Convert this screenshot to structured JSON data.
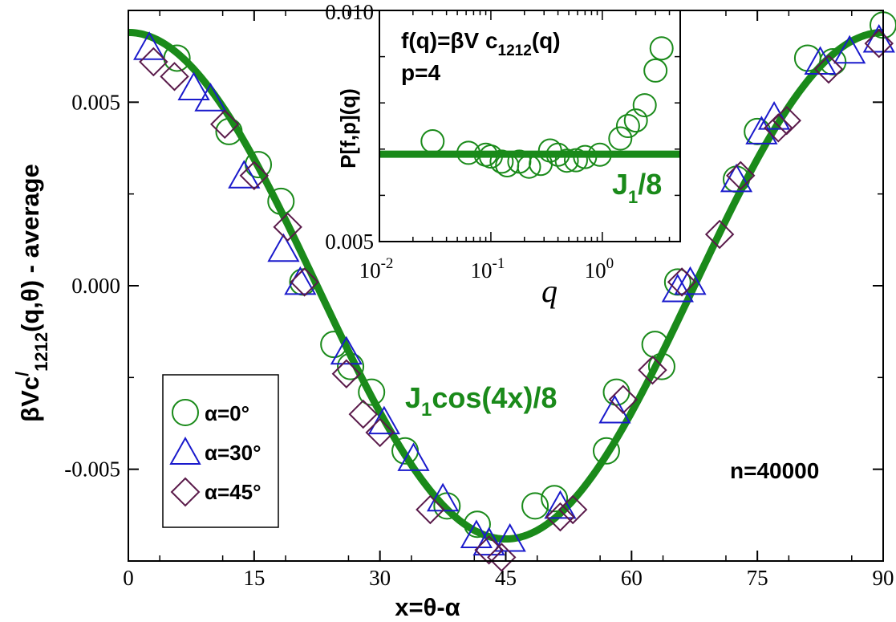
{
  "colors": {
    "theory_line": "#1a8a1a",
    "alpha0": "#1a8a1a",
    "alpha30": "#1a1acc",
    "alpha45": "#5a1a4a",
    "axis": "#000000"
  },
  "chart_data": [
    {
      "type": "scatter",
      "xlabel": {
        "main": "x=θ-α"
      },
      "ylabel": {
        "pre": "βVc",
        "prime": "/",
        "sub": "1212",
        "post": "(q,θ) - average"
      },
      "xlim": [
        0,
        90
      ],
      "ylim": [
        -0.0075,
        0.0075
      ],
      "xticks": [
        0,
        15,
        30,
        45,
        60,
        75,
        90
      ],
      "xtick_labels": [
        "0",
        "15",
        "30",
        "45",
        "60",
        "75",
        "90"
      ],
      "yticks": [
        -0.005,
        0.0,
        0.005
      ],
      "ytick_labels": [
        "-0.005",
        "0.000",
        "0.005"
      ],
      "curve": {
        "amplitude": 0.0069,
        "label_pre": "J",
        "label_sub": "1",
        "label_post": "cos(4x)/8"
      },
      "legend": {
        "placement": "bottom-left",
        "entries": [
          "α=0°",
          "α=30°",
          "α=45°"
        ]
      },
      "annotation": "n=40000",
      "series": [
        {
          "name": "α=0°",
          "marker": "circle",
          "points": [
            [
              5.8,
              0.0062
            ],
            [
              12,
              0.0042
            ],
            [
              15.5,
              0.0033
            ],
            [
              18.2,
              0.0023
            ],
            [
              20.8,
              0.0001
            ],
            [
              24.5,
              -0.0016
            ],
            [
              26.5,
              -0.0022
            ],
            [
              29,
              -0.0029
            ],
            [
              33,
              -0.0045
            ],
            [
              38,
              -0.006
            ],
            [
              41.6,
              -0.0065
            ],
            [
              48.5,
              -0.006
            ],
            [
              50.8,
              -0.0058
            ],
            [
              57,
              -0.0045
            ],
            [
              58.2,
              -0.0029
            ],
            [
              62.8,
              -0.0016
            ],
            [
              63.6,
              -0.0022
            ],
            [
              65.5,
              0.0001
            ],
            [
              72.5,
              0.0029
            ],
            [
              75,
              0.0042
            ],
            [
              81,
              0.0062
            ],
            [
              84,
              0.0061
            ],
            [
              90,
              0.0071
            ]
          ]
        },
        {
          "name": "α=30°",
          "marker": "triangle",
          "points": [
            [
              2.5,
              0.0065
            ],
            [
              7.8,
              0.0054
            ],
            [
              9.8,
              0.0051
            ],
            [
              13.8,
              0.003
            ],
            [
              18.5,
              0.001
            ],
            [
              20.5,
              0.0001
            ],
            [
              26,
              -0.0018
            ],
            [
              30.5,
              -0.0037
            ],
            [
              34,
              -0.0047
            ],
            [
              37.5,
              -0.0058
            ],
            [
              41.5,
              -0.0068
            ],
            [
              43,
              -0.007
            ],
            [
              45.5,
              -0.0069
            ],
            [
              51.5,
              -0.006
            ],
            [
              58,
              -0.0034
            ],
            [
              65.5,
              -0.0001
            ],
            [
              67,
              0.0001
            ],
            [
              72.5,
              0.0029
            ],
            [
              75.5,
              0.0042
            ],
            [
              77,
              0.0046
            ],
            [
              82.5,
              0.0061
            ],
            [
              86,
              0.0064
            ],
            [
              89.5,
              0.0067
            ]
          ]
        },
        {
          "name": "α=45°",
          "marker": "diamond",
          "points": [
            [
              3,
              0.0061
            ],
            [
              5.5,
              0.0057
            ],
            [
              11.5,
              0.0044
            ],
            [
              15,
              0.003
            ],
            [
              19,
              0.0016
            ],
            [
              21,
              0.0001
            ],
            [
              26,
              -0.0024
            ],
            [
              28,
              -0.0035
            ],
            [
              30,
              -0.004
            ],
            [
              36,
              -0.0061
            ],
            [
              43,
              -0.0072
            ],
            [
              44.5,
              -0.0074
            ],
            [
              51.5,
              -0.0063
            ],
            [
              53,
              -0.0061
            ],
            [
              59,
              -0.0031
            ],
            [
              62.5,
              -0.0023
            ],
            [
              66,
              0.0001
            ],
            [
              70.5,
              0.0014
            ],
            [
              73,
              0.003
            ],
            [
              77.5,
              0.0043
            ],
            [
              78.5,
              0.0045
            ],
            [
              83.5,
              0.0059
            ],
            [
              89.5,
              0.0066
            ]
          ]
        }
      ]
    },
    {
      "type": "scatter",
      "xscale": "log",
      "xlabel": "q",
      "ylabel": "P[f,p](q)",
      "xlim": [
        0.01,
        5
      ],
      "ylim": [
        0.005,
        0.01
      ],
      "xtick_labels": [
        {
          "value": 0.01,
          "base": "10",
          "exp": "-2"
        },
        {
          "value": 0.1,
          "base": "10",
          "exp": "-1"
        },
        {
          "value": 1,
          "base": "10",
          "exp": "0"
        }
      ],
      "ytick_labels": [
        {
          "value": 0.005,
          "label": "0.005"
        },
        {
          "value": 0.01,
          "label": "0.010"
        }
      ],
      "formula": {
        "pre": "f(q)=βV c",
        "sub": "1212",
        "post": "(q)"
      },
      "p_label": "p=4",
      "hline": {
        "value": 0.00689,
        "label_pre": "J",
        "label_sub": "1",
        "label_post": "/8"
      },
      "series": [
        {
          "name": "α=0°",
          "marker": "circle",
          "points": [
            [
              0.03,
              0.00717
            ],
            [
              0.063,
              0.00692
            ],
            [
              0.09,
              0.00688
            ],
            [
              0.1,
              0.00684
            ],
            [
              0.125,
              0.00673
            ],
            [
              0.14,
              0.00665
            ],
            [
              0.18,
              0.00673
            ],
            [
              0.22,
              0.00662
            ],
            [
              0.28,
              0.00668
            ],
            [
              0.34,
              0.00697
            ],
            [
              0.4,
              0.00688
            ],
            [
              0.48,
              0.00675
            ],
            [
              0.58,
              0.00676
            ],
            [
              0.7,
              0.00683
            ],
            [
              0.95,
              0.00688
            ],
            [
              1.45,
              0.00723
            ],
            [
              1.7,
              0.0075
            ],
            [
              2.0,
              0.00762
            ],
            [
              2.4,
              0.00795
            ],
            [
              3.0,
              0.0087
            ],
            [
              3.4,
              0.00918
            ]
          ]
        }
      ]
    }
  ]
}
